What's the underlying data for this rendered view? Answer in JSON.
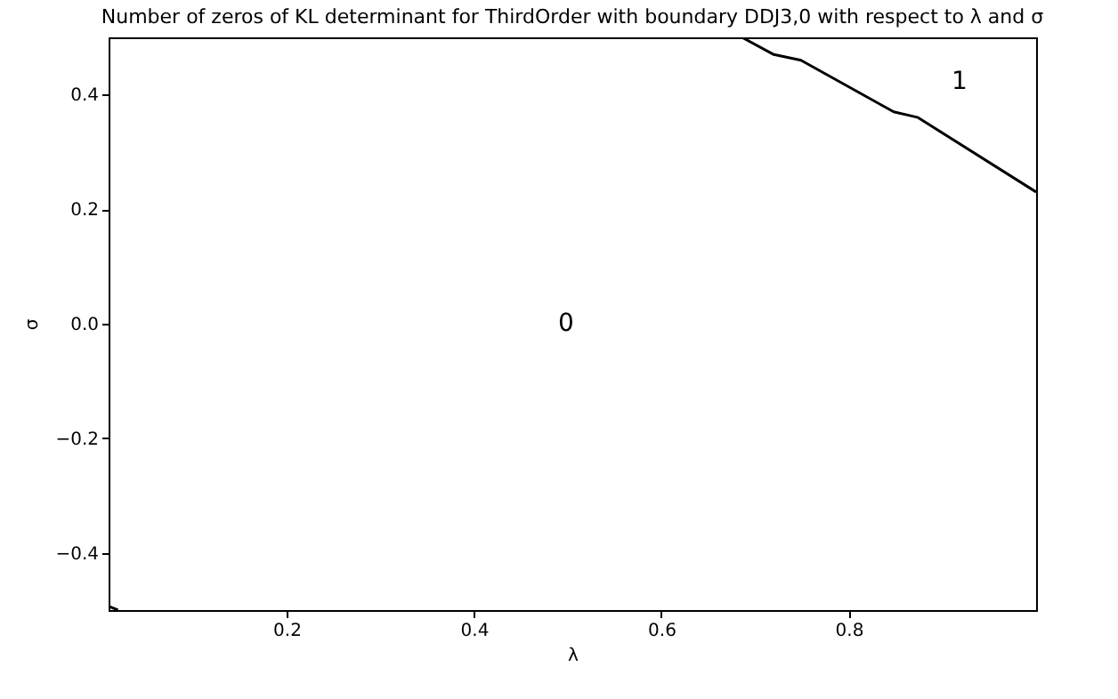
{
  "chart_data": {
    "type": "line",
    "title": "Number of zeros of KL determinant for ThirdOrder with boundary DDJ3,0 with respect to λ and σ",
    "xlabel": "λ",
    "ylabel": "σ",
    "xlim": [
      0.01,
      1.0
    ],
    "ylim": [
      -0.5,
      0.5
    ],
    "xticks": [
      0.2,
      0.4,
      0.6,
      0.8
    ],
    "yticks": [
      {
        "value": -0.4,
        "label": "−0.4"
      },
      {
        "value": -0.2,
        "label": "−0.2"
      },
      {
        "value": 0,
        "label": "0.0"
      },
      {
        "value": 0.2,
        "label": "0.2"
      },
      {
        "value": 0.4,
        "label": "0.4"
      }
    ],
    "grid": false,
    "line_style": "solid",
    "series": [
      {
        "color": "#000000",
        "x": [
          0.686,
          0.72,
          0.749,
          0.848,
          0.874,
          1.0
        ],
        "values": [
          0.5,
          0.47,
          0.46,
          0.37,
          0.36,
          0.23
        ]
      },
      {
        "color": "#000000",
        "x": [
          0.011,
          0.02
        ],
        "values": [
          -0.494,
          -0.5
        ]
      }
    ],
    "annotations": [
      "0",
      "1"
    ]
  }
}
